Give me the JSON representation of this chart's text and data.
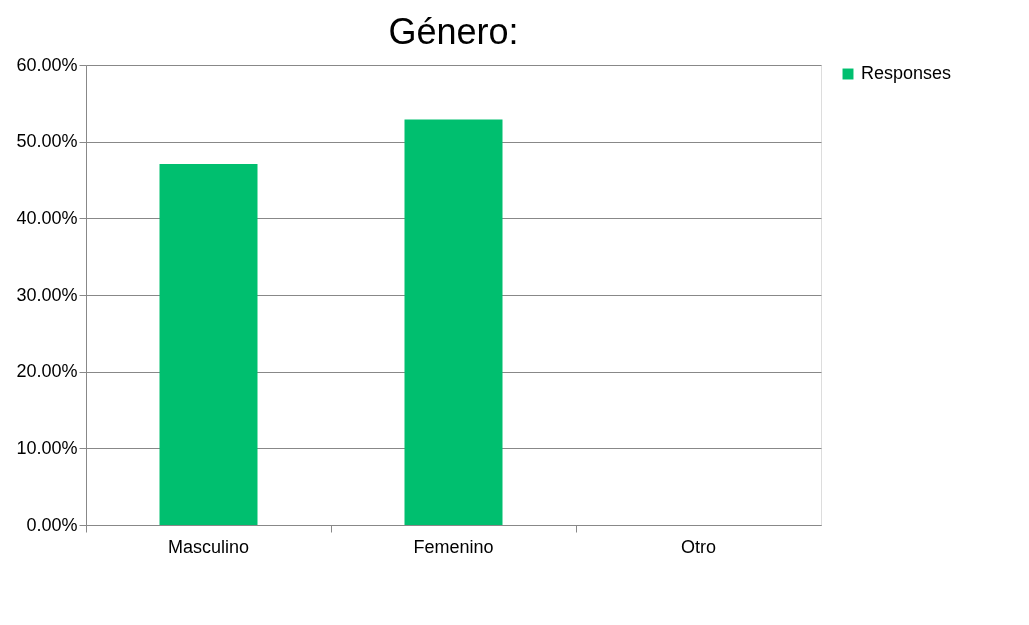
{
  "chart_data": {
    "type": "bar",
    "title": "Género:",
    "categories": [
      "Masculino",
      "Femenino",
      "Otro"
    ],
    "series": [
      {
        "name": "Responses",
        "color": "#00bf6f",
        "values": [
          47.1,
          52.9,
          0
        ]
      }
    ],
    "ylim": [
      0,
      60
    ],
    "yticks": [
      {
        "value": 0,
        "label": "0.00%"
      },
      {
        "value": 10,
        "label": "10.00%"
      },
      {
        "value": 20,
        "label": "20.00%"
      },
      {
        "value": 30,
        "label": "30.00%"
      },
      {
        "value": 40,
        "label": "40.00%"
      },
      {
        "value": 50,
        "label": "50.00%"
      },
      {
        "value": 60,
        "label": "60.00%"
      }
    ],
    "grid": "y",
    "legend": "right"
  }
}
